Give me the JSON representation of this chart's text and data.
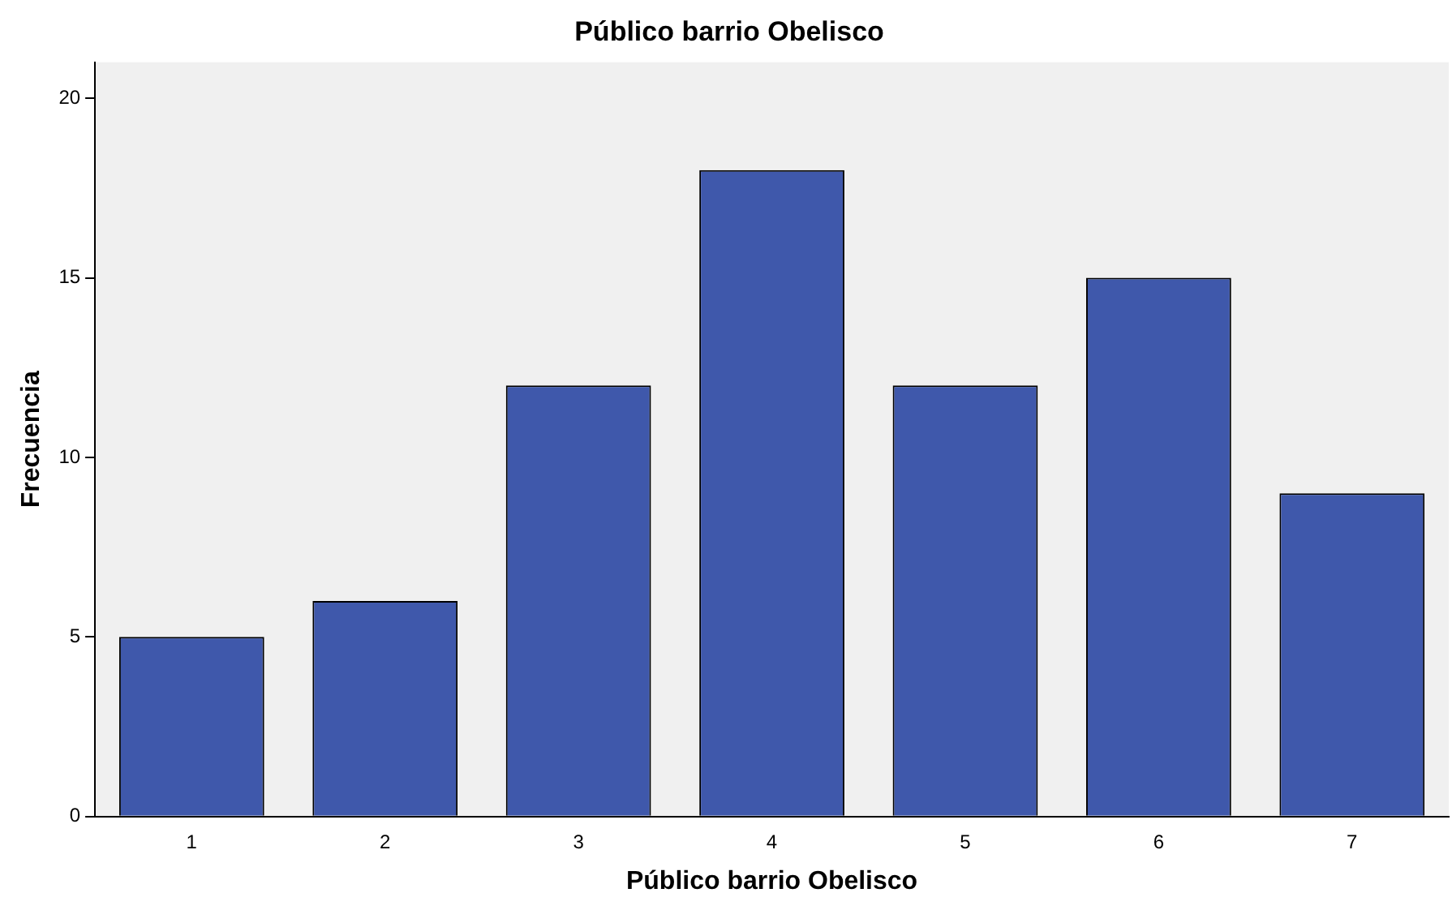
{
  "chart_data": {
    "type": "bar",
    "title": "Público barrio Obelisco",
    "xlabel": "Público barrio Obelisco",
    "ylabel": "Frecuencia",
    "categories": [
      "1",
      "2",
      "3",
      "4",
      "5",
      "6",
      "7"
    ],
    "values": [
      5,
      6,
      12,
      18,
      12,
      15,
      9
    ],
    "color": "#3f58ab",
    "ylim": [
      0,
      21
    ],
    "yticks": [
      0,
      5,
      10,
      15,
      20
    ],
    "grid": false,
    "legend": false
  }
}
